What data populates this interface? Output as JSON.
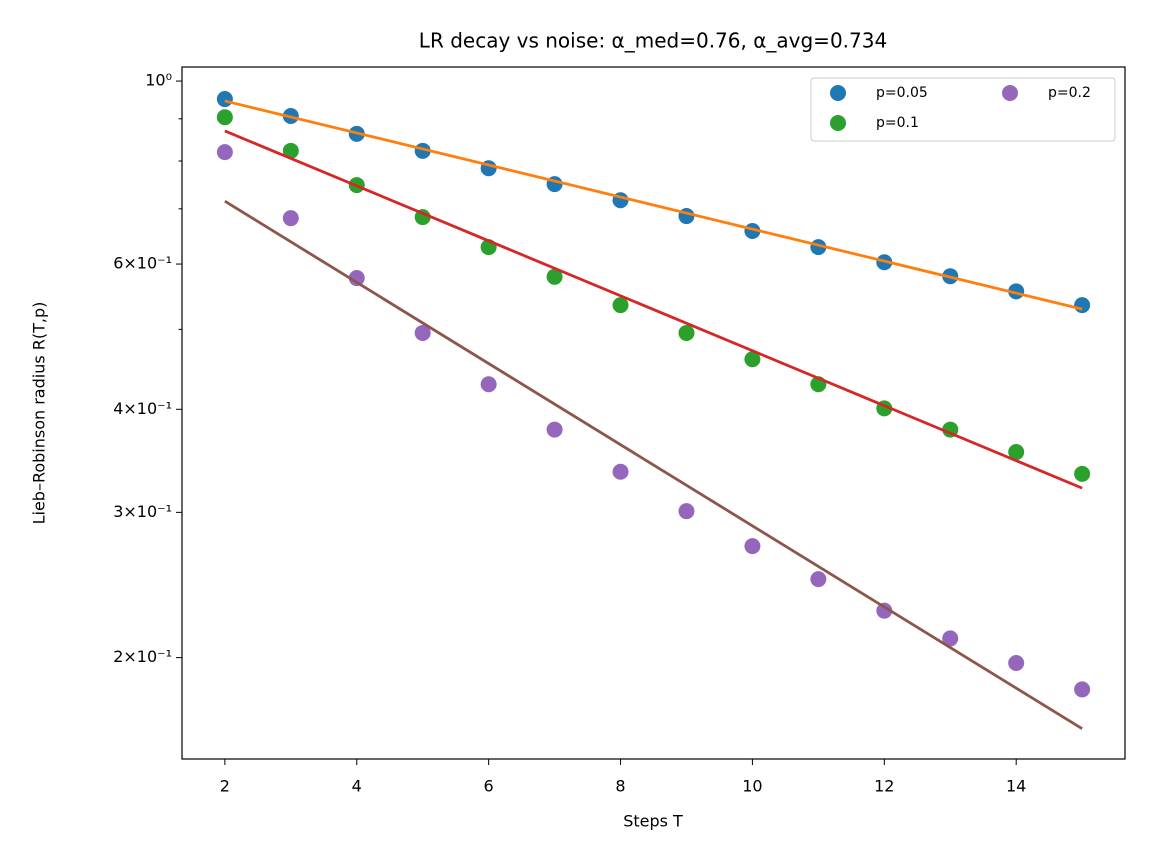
{
  "chart_data": {
    "type": "scatter",
    "title": "LR decay vs noise: α_med=0.76, α_avg=0.734",
    "xlabel": "Steps T",
    "ylabel": "Lieb–Robinson radius R(T,p)",
    "log_y": true,
    "xlim": [
      1.35,
      15.65
    ],
    "ylim": [
      0.1507,
      1.04
    ],
    "xticks": [
      2,
      4,
      6,
      8,
      10,
      12,
      14
    ],
    "yticks": [
      {
        "value": 1,
        "label": "10⁰"
      },
      {
        "value": 0.6,
        "label": "6×10⁻¹"
      },
      {
        "value": 0.4,
        "label": "4×10⁻¹"
      },
      {
        "value": 0.3,
        "label": "3×10⁻¹"
      },
      {
        "value": 0.2,
        "label": "2×10⁻¹"
      }
    ],
    "yminor_ticks": [
      0.5,
      0.7,
      0.8,
      0.9
    ],
    "legend": "upper right",
    "x": [
      2,
      3,
      4,
      5,
      6,
      7,
      8,
      9,
      10,
      11,
      12,
      13,
      14,
      15
    ],
    "series": [
      {
        "name": "p=0.05",
        "color": "#1f77b4",
        "values": [
          0.951,
          0.907,
          0.863,
          0.823,
          0.784,
          0.75,
          0.717,
          0.686,
          0.658,
          0.629,
          0.603,
          0.58,
          0.556,
          0.535
        ]
      },
      {
        "name": "p=0.1",
        "color": "#2ca02c",
        "values": [
          0.904,
          0.823,
          0.748,
          0.684,
          0.629,
          0.579,
          0.535,
          0.495,
          0.46,
          0.429,
          0.401,
          0.378,
          0.355,
          0.334
        ]
      },
      {
        "name": "p=0.2",
        "color": "#9467bd",
        "values": [
          0.82,
          0.682,
          0.577,
          0.495,
          0.429,
          0.378,
          0.336,
          0.301,
          0.273,
          0.249,
          0.228,
          0.211,
          0.197,
          0.183
        ]
      }
    ],
    "lines": [
      {
        "color": "#ff7f0e",
        "x": [
          2,
          15
        ],
        "values": [
          0.946,
          0.529
        ]
      },
      {
        "color": "#d62728",
        "x": [
          2,
          15
        ],
        "values": [
          0.87,
          0.321
        ]
      },
      {
        "color": "#8c564b",
        "x": [
          2,
          15
        ],
        "values": [
          0.715,
          0.164
        ]
      }
    ]
  }
}
